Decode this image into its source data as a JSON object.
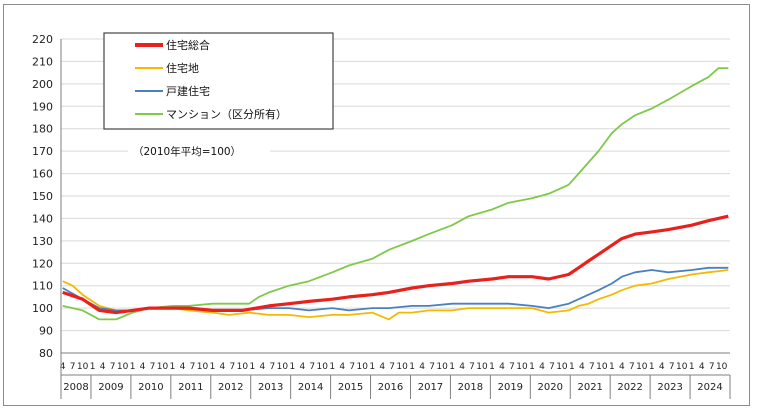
{
  "chart_data": {
    "type": "line",
    "title": "",
    "xlabel": "",
    "ylabel": "",
    "note": "（2010年平均=100）",
    "ylim": [
      80,
      220
    ],
    "yticks": [
      80,
      90,
      100,
      110,
      120,
      130,
      140,
      150,
      160,
      170,
      180,
      190,
      200,
      210,
      220
    ],
    "grid": true,
    "legend_position": "top-left",
    "x_start": "2008-04",
    "month_tick_labels": [
      "4",
      "7",
      "10",
      "1"
    ],
    "years": [
      "2008",
      "2009",
      "2010",
      "2011",
      "2012",
      "2013",
      "2014",
      "2015",
      "2016",
      "2017",
      "2018",
      "2019",
      "2020",
      "2021",
      "2022",
      "2023",
      "2024"
    ],
    "x_end": "2024-12",
    "series": [
      {
        "name": "住宅総合",
        "color": "#e8211c",
        "points": [
          [
            "2008-04",
            107
          ],
          [
            "2008-10",
            104
          ],
          [
            "2009-03",
            99
          ],
          [
            "2009-08",
            98
          ],
          [
            "2010-01",
            99
          ],
          [
            "2010-06",
            100
          ],
          [
            "2011-06",
            100
          ],
          [
            "2012-01",
            99
          ],
          [
            "2012-10",
            99
          ],
          [
            "2013-06",
            101
          ],
          [
            "2013-12",
            102
          ],
          [
            "2014-06",
            103
          ],
          [
            "2015-01",
            104
          ],
          [
            "2015-06",
            105
          ],
          [
            "2016-01",
            106
          ],
          [
            "2016-06",
            107
          ],
          [
            "2017-01",
            109
          ],
          [
            "2017-06",
            110
          ],
          [
            "2018-01",
            111
          ],
          [
            "2018-06",
            112
          ],
          [
            "2019-01",
            113
          ],
          [
            "2019-06",
            114
          ],
          [
            "2020-01",
            114
          ],
          [
            "2020-06",
            113
          ],
          [
            "2020-12",
            115
          ],
          [
            "2021-03",
            118
          ],
          [
            "2021-06",
            121
          ],
          [
            "2021-09",
            124
          ],
          [
            "2022-01",
            128
          ],
          [
            "2022-04",
            131
          ],
          [
            "2022-08",
            133
          ],
          [
            "2023-01",
            134
          ],
          [
            "2023-06",
            135
          ],
          [
            "2024-01",
            137
          ],
          [
            "2024-06",
            139
          ],
          [
            "2024-12",
            141
          ]
        ]
      },
      {
        "name": "住宅地",
        "color": "#f6b800",
        "points": [
          [
            "2008-04",
            112
          ],
          [
            "2008-07",
            110
          ],
          [
            "2008-10",
            106
          ],
          [
            "2009-03",
            101
          ],
          [
            "2009-08",
            99
          ],
          [
            "2010-01",
            99
          ],
          [
            "2010-06",
            100
          ],
          [
            "2011-01",
            100
          ],
          [
            "2011-06",
            99
          ],
          [
            "2012-01",
            98
          ],
          [
            "2012-06",
            97
          ],
          [
            "2012-12",
            98
          ],
          [
            "2013-06",
            97
          ],
          [
            "2013-12",
            97
          ],
          [
            "2014-06",
            96
          ],
          [
            "2015-01",
            97
          ],
          [
            "2015-06",
            97
          ],
          [
            "2016-01",
            98
          ],
          [
            "2016-06",
            95
          ],
          [
            "2016-09",
            98
          ],
          [
            "2017-01",
            98
          ],
          [
            "2017-06",
            99
          ],
          [
            "2018-01",
            99
          ],
          [
            "2018-06",
            100
          ],
          [
            "2019-01",
            100
          ],
          [
            "2019-06",
            100
          ],
          [
            "2020-01",
            100
          ],
          [
            "2020-06",
            98
          ],
          [
            "2020-12",
            99
          ],
          [
            "2021-03",
            101
          ],
          [
            "2021-06",
            102
          ],
          [
            "2021-09",
            104
          ],
          [
            "2022-01",
            106
          ],
          [
            "2022-04",
            108
          ],
          [
            "2022-08",
            110
          ],
          [
            "2023-01",
            111
          ],
          [
            "2023-06",
            113
          ],
          [
            "2024-01",
            115
          ],
          [
            "2024-06",
            116
          ],
          [
            "2024-12",
            117
          ]
        ]
      },
      {
        "name": "戸建住宅",
        "color": "#4a7fc1",
        "points": [
          [
            "2008-04",
            109
          ],
          [
            "2008-10",
            104
          ],
          [
            "2009-03",
            100
          ],
          [
            "2009-08",
            99
          ],
          [
            "2010-01",
            99
          ],
          [
            "2010-06",
            100
          ],
          [
            "2011-06",
            100
          ],
          [
            "2012-01",
            99
          ],
          [
            "2012-10",
            99
          ],
          [
            "2013-06",
            100
          ],
          [
            "2013-12",
            100
          ],
          [
            "2014-06",
            99
          ],
          [
            "2015-01",
            100
          ],
          [
            "2015-06",
            99
          ],
          [
            "2016-01",
            100
          ],
          [
            "2016-06",
            100
          ],
          [
            "2017-01",
            101
          ],
          [
            "2017-06",
            101
          ],
          [
            "2018-01",
            102
          ],
          [
            "2018-06",
            102
          ],
          [
            "2019-01",
            102
          ],
          [
            "2019-06",
            102
          ],
          [
            "2020-01",
            101
          ],
          [
            "2020-06",
            100
          ],
          [
            "2020-12",
            102
          ],
          [
            "2021-03",
            104
          ],
          [
            "2021-06",
            106
          ],
          [
            "2021-09",
            108
          ],
          [
            "2022-01",
            111
          ],
          [
            "2022-04",
            114
          ],
          [
            "2022-08",
            116
          ],
          [
            "2023-01",
            117
          ],
          [
            "2023-06",
            116
          ],
          [
            "2024-01",
            117
          ],
          [
            "2024-06",
            118
          ],
          [
            "2024-12",
            118
          ]
        ]
      },
      {
        "name": "マンション（区分所有）",
        "color": "#7ec94a",
        "points": [
          [
            "2008-04",
            101
          ],
          [
            "2008-10",
            99
          ],
          [
            "2009-03",
            95
          ],
          [
            "2009-08",
            95
          ],
          [
            "2010-01",
            98
          ],
          [
            "2010-06",
            100
          ],
          [
            "2011-01",
            101
          ],
          [
            "2011-06",
            101
          ],
          [
            "2012-01",
            102
          ],
          [
            "2012-06",
            102
          ],
          [
            "2012-12",
            102
          ],
          [
            "2013-03",
            105
          ],
          [
            "2013-06",
            107
          ],
          [
            "2013-12",
            110
          ],
          [
            "2014-06",
            112
          ],
          [
            "2015-01",
            116
          ],
          [
            "2015-06",
            119
          ],
          [
            "2016-01",
            122
          ],
          [
            "2016-06",
            126
          ],
          [
            "2017-01",
            130
          ],
          [
            "2017-06",
            133
          ],
          [
            "2018-01",
            137
          ],
          [
            "2018-06",
            141
          ],
          [
            "2019-01",
            144
          ],
          [
            "2019-06",
            147
          ],
          [
            "2020-01",
            149
          ],
          [
            "2020-06",
            151
          ],
          [
            "2020-12",
            155
          ],
          [
            "2021-03",
            160
          ],
          [
            "2021-06",
            165
          ],
          [
            "2021-09",
            170
          ],
          [
            "2022-01",
            178
          ],
          [
            "2022-04",
            182
          ],
          [
            "2022-08",
            186
          ],
          [
            "2023-01",
            189
          ],
          [
            "2023-06",
            193
          ],
          [
            "2024-01",
            199
          ],
          [
            "2024-06",
            203
          ],
          [
            "2024-09",
            207
          ],
          [
            "2024-12",
            207
          ]
        ]
      }
    ]
  }
}
